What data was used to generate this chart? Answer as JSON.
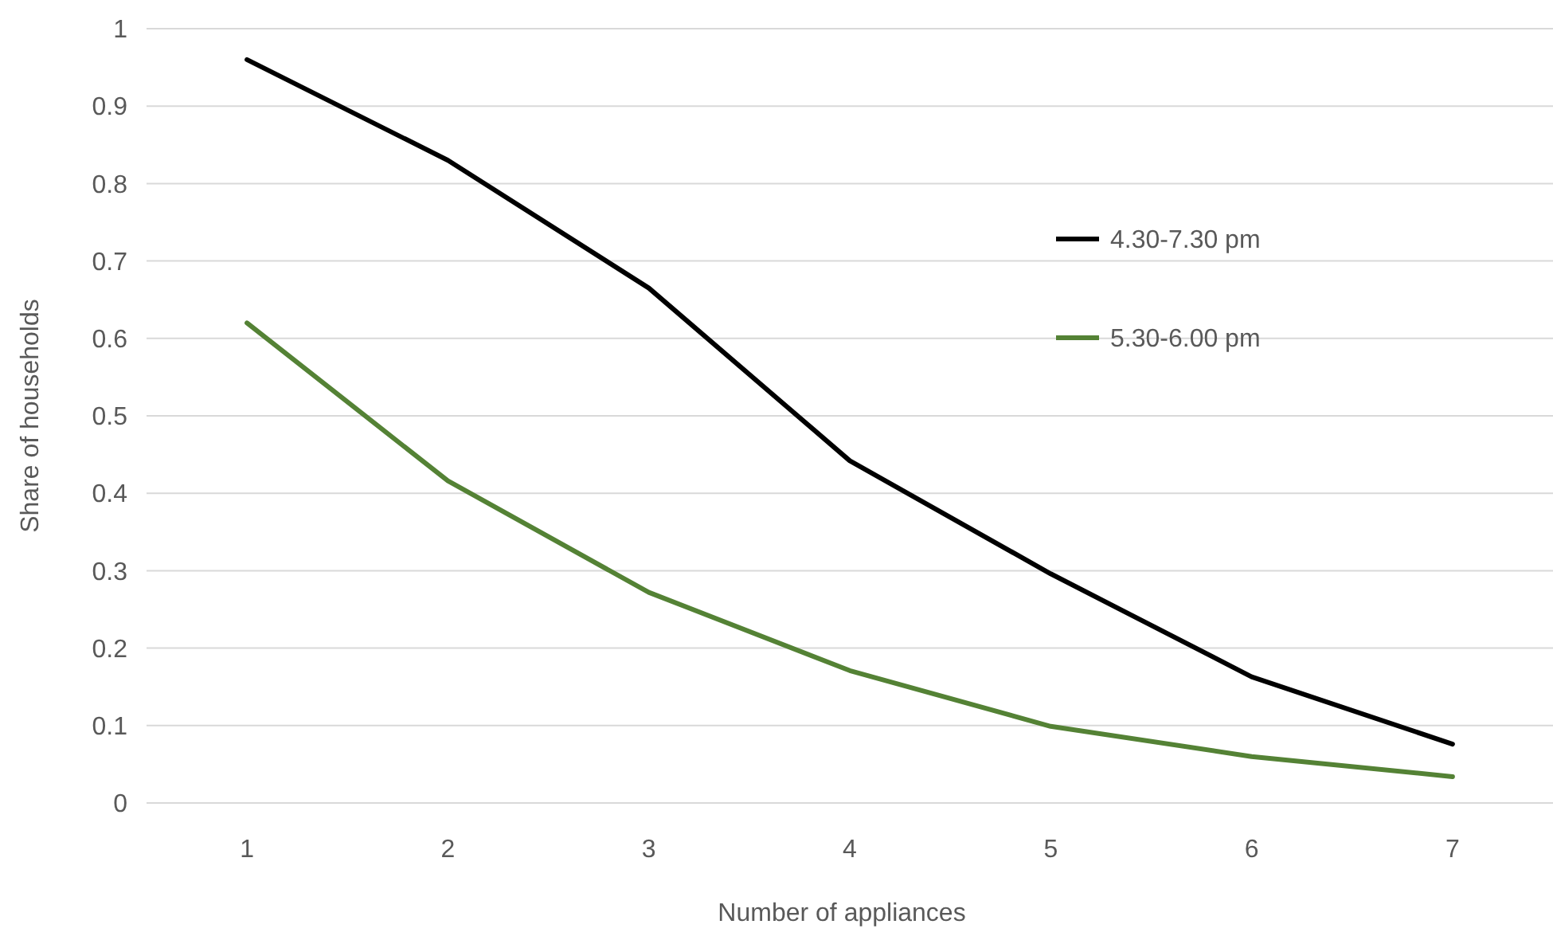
{
  "chart_data": {
    "type": "line",
    "xlabel": "Number  of appliances",
    "ylabel": "Share of households",
    "categories": [
      "1",
      "2",
      "3",
      "4",
      "5",
      "6",
      "7"
    ],
    "series": [
      {
        "name": "4.30-7.30 pm",
        "color": "#000000",
        "values": [
          0.96,
          0.83,
          0.665,
          0.442,
          0.296,
          0.163,
          0.076
        ]
      },
      {
        "name": "5.30-6.00 pm",
        "color": "#548235",
        "values": [
          0.62,
          0.416,
          0.272,
          0.171,
          0.099,
          0.06,
          0.034
        ]
      }
    ],
    "ylim": [
      0,
      1
    ],
    "yticks": [
      0,
      0.1,
      0.2,
      0.3,
      0.4,
      0.5,
      0.6,
      0.7,
      0.8,
      0.9,
      1
    ],
    "grid": "y",
    "legend": "top right",
    "marker": "none",
    "line_style": "solid"
  }
}
